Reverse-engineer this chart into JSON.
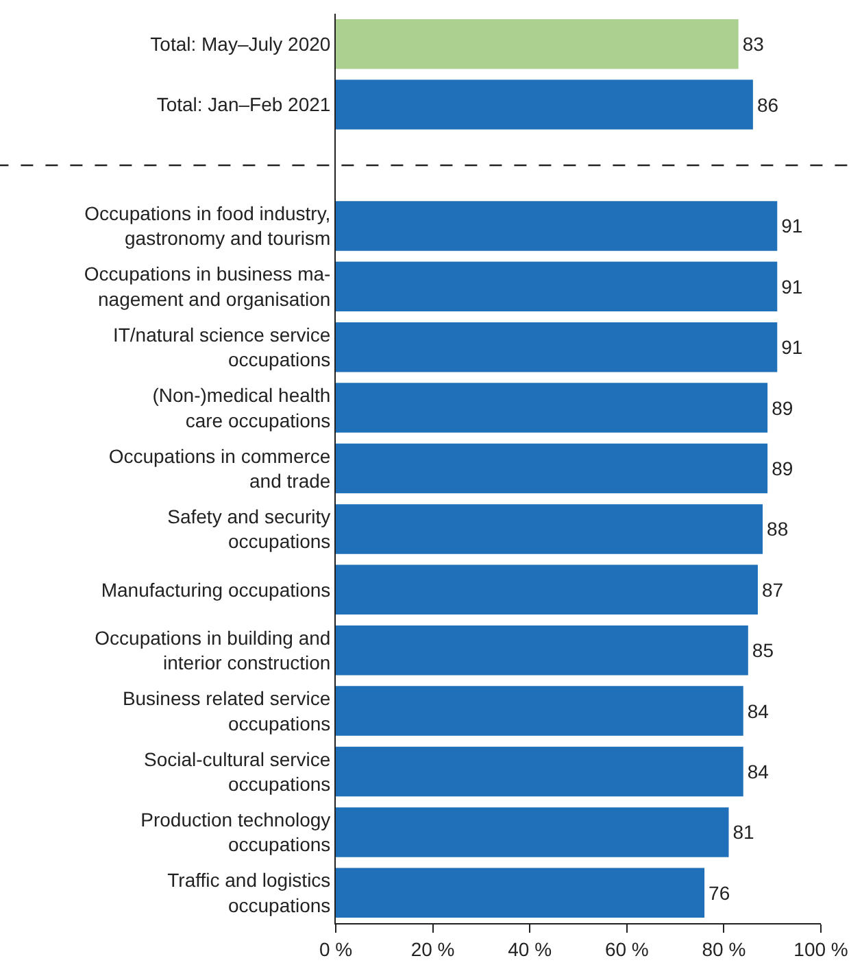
{
  "chart_data": {
    "type": "bar",
    "orientation": "horizontal",
    "categories": [
      "Total: May–July 2020",
      "Total: Jan–Feb 2021",
      null,
      "Occupations in food industry,\ngastronomy and tourism",
      "Occupations in business ma-\nnagement and organisation",
      "IT/natural science service\noccupations",
      "(Non-)medical health\ncare occupations",
      "Occupations in commerce\nand trade",
      "Safety and security\noccupations",
      "Manufacturing occupations",
      "Occupations in building and\ninterior construction",
      "Business related service\noccupations",
      "Social-cultural service\noccupations",
      "Production technology\noccupations",
      "Traffic and logistics\noccupations"
    ],
    "values": [
      83,
      86,
      null,
      91,
      91,
      91,
      89,
      89,
      88,
      87,
      85,
      84,
      84,
      81,
      76
    ],
    "colors": [
      "#abd08f",
      "#1f70b8",
      null,
      "#1f70b8",
      "#1f70b8",
      "#1f70b8",
      "#1f70b8",
      "#1f70b8",
      "#1f70b8",
      "#1f70b8",
      "#1f70b8",
      "#1f70b8",
      "#1f70b8",
      "#1f70b8",
      "#1f70b8"
    ],
    "data_labels": true,
    "xlim": [
      0,
      100
    ],
    "xticks": [
      {
        "value": 0,
        "label": "0 %"
      },
      {
        "value": 20,
        "label": "20 %"
      },
      {
        "value": 40,
        "label": "40 %"
      },
      {
        "value": 60,
        "label": "60 %"
      },
      {
        "value": 80,
        "label": "80 %"
      },
      {
        "value": 100,
        "label": "100 %"
      }
    ],
    "ref_lines": [
      {
        "axis": "y",
        "value": null,
        "line_style": "dashed",
        "color": "#222222"
      }
    ]
  }
}
